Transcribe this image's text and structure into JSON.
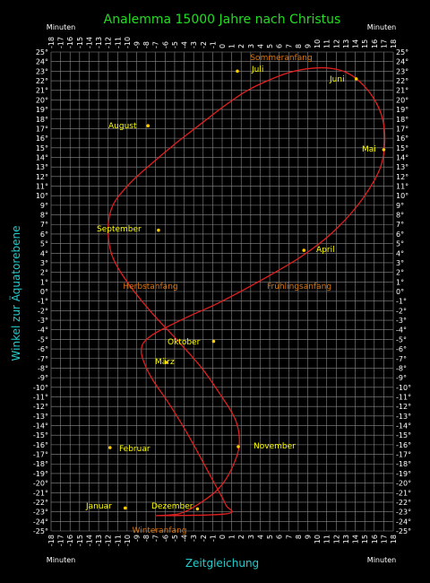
{
  "chart_data": {
    "type": "line",
    "title": "Analemma  15000 Jahre nach Christus",
    "xlabel": "Zeitgleichung",
    "ylabel": "Winkel zur Äquatorebene",
    "corner_labels": {
      "top_left": "Minuten",
      "top_right": "Minuten",
      "bottom_left": "Minuten",
      "bottom_right": "Minuten"
    },
    "xlim": [
      -18,
      18
    ],
    "ylim": [
      -25,
      25
    ],
    "x_ticks": [
      "-18",
      "-17",
      "-16",
      "-15",
      "-14",
      "-13",
      "-12",
      "-11",
      "-10",
      "-9",
      "-8",
      "-7",
      "-6",
      "-5",
      "-4",
      "-3",
      "-2",
      "-1",
      "0",
      "1",
      "2",
      "3",
      "4",
      "5",
      "6",
      "7",
      "8",
      "9",
      "10",
      "11",
      "12",
      "13",
      "14",
      "15",
      "16",
      "17",
      "18"
    ],
    "y_ticks": [
      "25°",
      "24°",
      "23°",
      "22°",
      "21°",
      "20°",
      "19°",
      "18°",
      "17°",
      "16°",
      "15°",
      "14°",
      "13°",
      "12°",
      "11°",
      "10°",
      "9°",
      "8°",
      "7°",
      "6°",
      "5°",
      "4°",
      "3°",
      "2°",
      "1°",
      "0°",
      "-1°",
      "-2°",
      "-3°",
      "-4°",
      "-5°",
      "-6°",
      "-7°",
      "-8°",
      "-9°",
      "-10°",
      "-11°",
      "-12°",
      "-13°",
      "-14°",
      "-15°",
      "-16°",
      "-17°",
      "-18°",
      "-19°",
      "-20°",
      "-21°",
      "-22°",
      "-23°",
      "-24°",
      "-25°"
    ],
    "grid": true,
    "series": [
      {
        "color": "#e02020",
        "x": [
          -6.8,
          -4.5,
          -2.5,
          -0.4,
          1.0,
          1.8,
          1.4,
          -0.3,
          -2.3,
          -4.9,
          -7.6,
          -10.0,
          -11.6,
          -12.0,
          -11.5,
          -9.8,
          -7.6,
          -5.1,
          -2.5,
          0.0,
          2.5,
          5.0,
          7.2,
          9.4,
          11.4,
          13.2,
          14.8,
          16.1,
          16.9,
          17.1,
          16.7,
          15.4,
          13.5,
          11.2,
          8.4,
          5.4,
          2.3,
          -0.6,
          -3.3,
          -5.6,
          -7.3,
          -8.3,
          -8.5,
          -8.1,
          -7.2,
          -5.8,
          -4.4,
          -3.0,
          -1.7,
          -0.5,
          0.4,
          0.5
        ],
        "y": [
          -23.4,
          -23.2,
          -22.2,
          -20.6,
          -18.5,
          -16.0,
          -13.4,
          -10.6,
          -7.8,
          -4.9,
          -2.0,
          1.0,
          3.8,
          6.6,
          9.0,
          11.2,
          13.2,
          15.3,
          17.3,
          19.2,
          20.9,
          22.1,
          22.9,
          23.3,
          23.3,
          22.8,
          21.6,
          19.9,
          17.9,
          15.6,
          13.1,
          10.6,
          8.1,
          5.8,
          3.7,
          1.9,
          0.2,
          -1.3,
          -2.5,
          -3.6,
          -4.5,
          -5.4,
          -6.4,
          -7.7,
          -9.4,
          -11.4,
          -13.6,
          -16.0,
          -18.4,
          -20.6,
          -22.3,
          -23.2
        ],
        "closed": true
      }
    ],
    "annotations": [
      {
        "text": "Januar",
        "kind": "month",
        "x": -10.2,
        "y": -22.6
      },
      {
        "text": "Februar",
        "kind": "month",
        "x": -11.8,
        "y": -16.3
      },
      {
        "text": "März",
        "kind": "month",
        "x": -5.9,
        "y": -7.4
      },
      {
        "text": "April",
        "kind": "month",
        "x": 8.6,
        "y": 4.3
      },
      {
        "text": "Mai",
        "kind": "month",
        "x": 17.0,
        "y": 14.8
      },
      {
        "text": "Juni",
        "kind": "month",
        "x": 14.1,
        "y": 22.2
      },
      {
        "text": "Juli",
        "kind": "month",
        "x": 1.6,
        "y": 23.0
      },
      {
        "text": "August",
        "kind": "month",
        "x": -7.8,
        "y": 17.3
      },
      {
        "text": "September",
        "kind": "month",
        "x": -6.7,
        "y": 6.4
      },
      {
        "text": "Oktober",
        "kind": "month",
        "x": -0.9,
        "y": -5.2
      },
      {
        "text": "November",
        "kind": "month",
        "x": 1.7,
        "y": -16.2
      },
      {
        "text": "Dezember",
        "kind": "month",
        "x": -2.6,
        "y": -22.7
      },
      {
        "text": "Sommeranfang",
        "kind": "season"
      },
      {
        "text": "Herbstanfang",
        "kind": "season"
      },
      {
        "text": "Frühlingsanfang",
        "kind": "season"
      },
      {
        "text": "Winteranfang",
        "kind": "season"
      }
    ],
    "colors": {
      "background": "#000000",
      "grid": "#8a8a8a",
      "curve": "#e02020",
      "month_label": "#ffff00",
      "season_label": "#dd7711",
      "title": "#22dd22",
      "axis_title": "#22cccc",
      "ticks": "#ffffff"
    }
  }
}
